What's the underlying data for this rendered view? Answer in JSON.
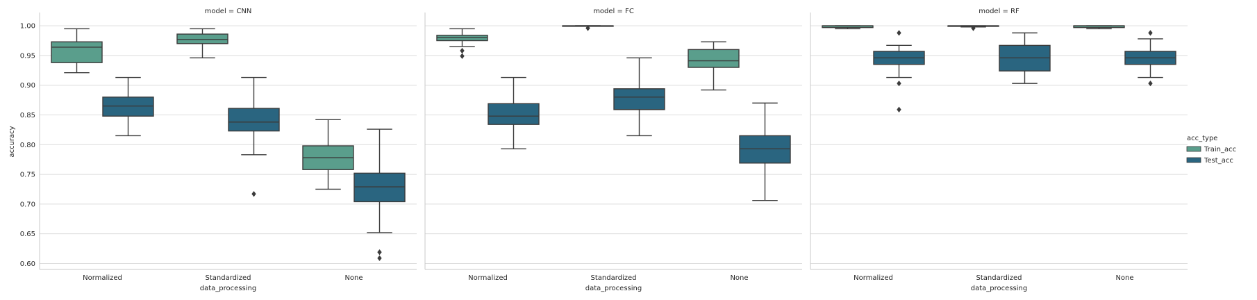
{
  "chart_data": {
    "type": "box",
    "ylabel": "accuracy",
    "xlabel": "data_processing",
    "ylim": [
      0.59,
      1.02
    ],
    "yticks": [
      "0.60",
      "0.65",
      "0.70",
      "0.75",
      "0.80",
      "0.85",
      "0.90",
      "0.95",
      "1.00"
    ],
    "categories": [
      "Normalized",
      "Standardized",
      "None"
    ],
    "grid": "horizontal",
    "legend": {
      "title": "acc_type",
      "position": "right",
      "entries": [
        {
          "label": "Train_acc",
          "color": "#5a9e8c"
        },
        {
          "label": "Test_acc",
          "color": "#2a6580"
        }
      ]
    },
    "facets": [
      {
        "title": "model = CNN",
        "boxes": [
          {
            "category": "Normalized",
            "series": "Train_acc",
            "whislo": 0.921,
            "q1": 0.938,
            "med": 0.964,
            "q3": 0.973,
            "whishi": 0.995,
            "fliers": []
          },
          {
            "category": "Normalized",
            "series": "Test_acc",
            "whislo": 0.815,
            "q1": 0.848,
            "med": 0.865,
            "q3": 0.88,
            "whishi": 0.913,
            "fliers": []
          },
          {
            "category": "Standardized",
            "series": "Train_acc",
            "whislo": 0.946,
            "q1": 0.97,
            "med": 0.977,
            "q3": 0.986,
            "whishi": 0.995,
            "fliers": []
          },
          {
            "category": "Standardized",
            "series": "Test_acc",
            "whislo": 0.783,
            "q1": 0.823,
            "med": 0.838,
            "q3": 0.861,
            "whishi": 0.913,
            "fliers": [
              0.717
            ]
          },
          {
            "category": "None",
            "series": "Train_acc",
            "whislo": 0.725,
            "q1": 0.758,
            "med": 0.778,
            "q3": 0.798,
            "whishi": 0.842,
            "fliers": []
          },
          {
            "category": "None",
            "series": "Test_acc",
            "whislo": 0.652,
            "q1": 0.704,
            "med": 0.729,
            "q3": 0.752,
            "whishi": 0.826,
            "fliers": [
              0.619,
              0.609
            ]
          }
        ]
      },
      {
        "title": "model = FC",
        "boxes": [
          {
            "category": "Normalized",
            "series": "Train_acc",
            "whislo": 0.965,
            "q1": 0.975,
            "med": 0.98,
            "q3": 0.984,
            "whishi": 0.995,
            "fliers": [
              0.958,
              0.949
            ]
          },
          {
            "category": "Normalized",
            "series": "Test_acc",
            "whislo": 0.793,
            "q1": 0.834,
            "med": 0.848,
            "q3": 0.869,
            "whishi": 0.913,
            "fliers": []
          },
          {
            "category": "Standardized",
            "series": "Train_acc",
            "whislo": 1.0,
            "q1": 1.0,
            "med": 1.0,
            "q3": 1.0,
            "whishi": 1.0,
            "fliers": [
              0.996
            ]
          },
          {
            "category": "Standardized",
            "series": "Test_acc",
            "whislo": 0.815,
            "q1": 0.859,
            "med": 0.88,
            "q3": 0.894,
            "whishi": 0.946,
            "fliers": []
          },
          {
            "category": "None",
            "series": "Train_acc",
            "whislo": 0.892,
            "q1": 0.93,
            "med": 0.941,
            "q3": 0.96,
            "whishi": 0.973,
            "fliers": []
          },
          {
            "category": "None",
            "series": "Test_acc",
            "whislo": 0.706,
            "q1": 0.769,
            "med": 0.793,
            "q3": 0.815,
            "whishi": 0.87,
            "fliers": []
          }
        ]
      },
      {
        "title": "model = RF",
        "boxes": [
          {
            "category": "Normalized",
            "series": "Train_acc",
            "whislo": 0.995,
            "q1": 0.997,
            "med": 1.0,
            "q3": 1.0,
            "whishi": 1.0,
            "fliers": []
          },
          {
            "category": "Normalized",
            "series": "Test_acc",
            "whislo": 0.913,
            "q1": 0.935,
            "med": 0.946,
            "q3": 0.957,
            "whishi": 0.967,
            "fliers": [
              0.988,
              0.903,
              0.859
            ]
          },
          {
            "category": "Standardized",
            "series": "Train_acc",
            "whislo": 0.998,
            "q1": 0.999,
            "med": 1.0,
            "q3": 1.0,
            "whishi": 1.0,
            "fliers": [
              0.996
            ]
          },
          {
            "category": "Standardized",
            "series": "Test_acc",
            "whislo": 0.903,
            "q1": 0.924,
            "med": 0.946,
            "q3": 0.967,
            "whishi": 0.988,
            "fliers": []
          },
          {
            "category": "None",
            "series": "Train_acc",
            "whislo": 0.995,
            "q1": 0.997,
            "med": 1.0,
            "q3": 1.0,
            "whishi": 1.0,
            "fliers": []
          },
          {
            "category": "None",
            "series": "Test_acc",
            "whislo": 0.913,
            "q1": 0.935,
            "med": 0.946,
            "q3": 0.957,
            "whishi": 0.978,
            "fliers": [
              0.988,
              0.903
            ]
          }
        ]
      }
    ]
  }
}
